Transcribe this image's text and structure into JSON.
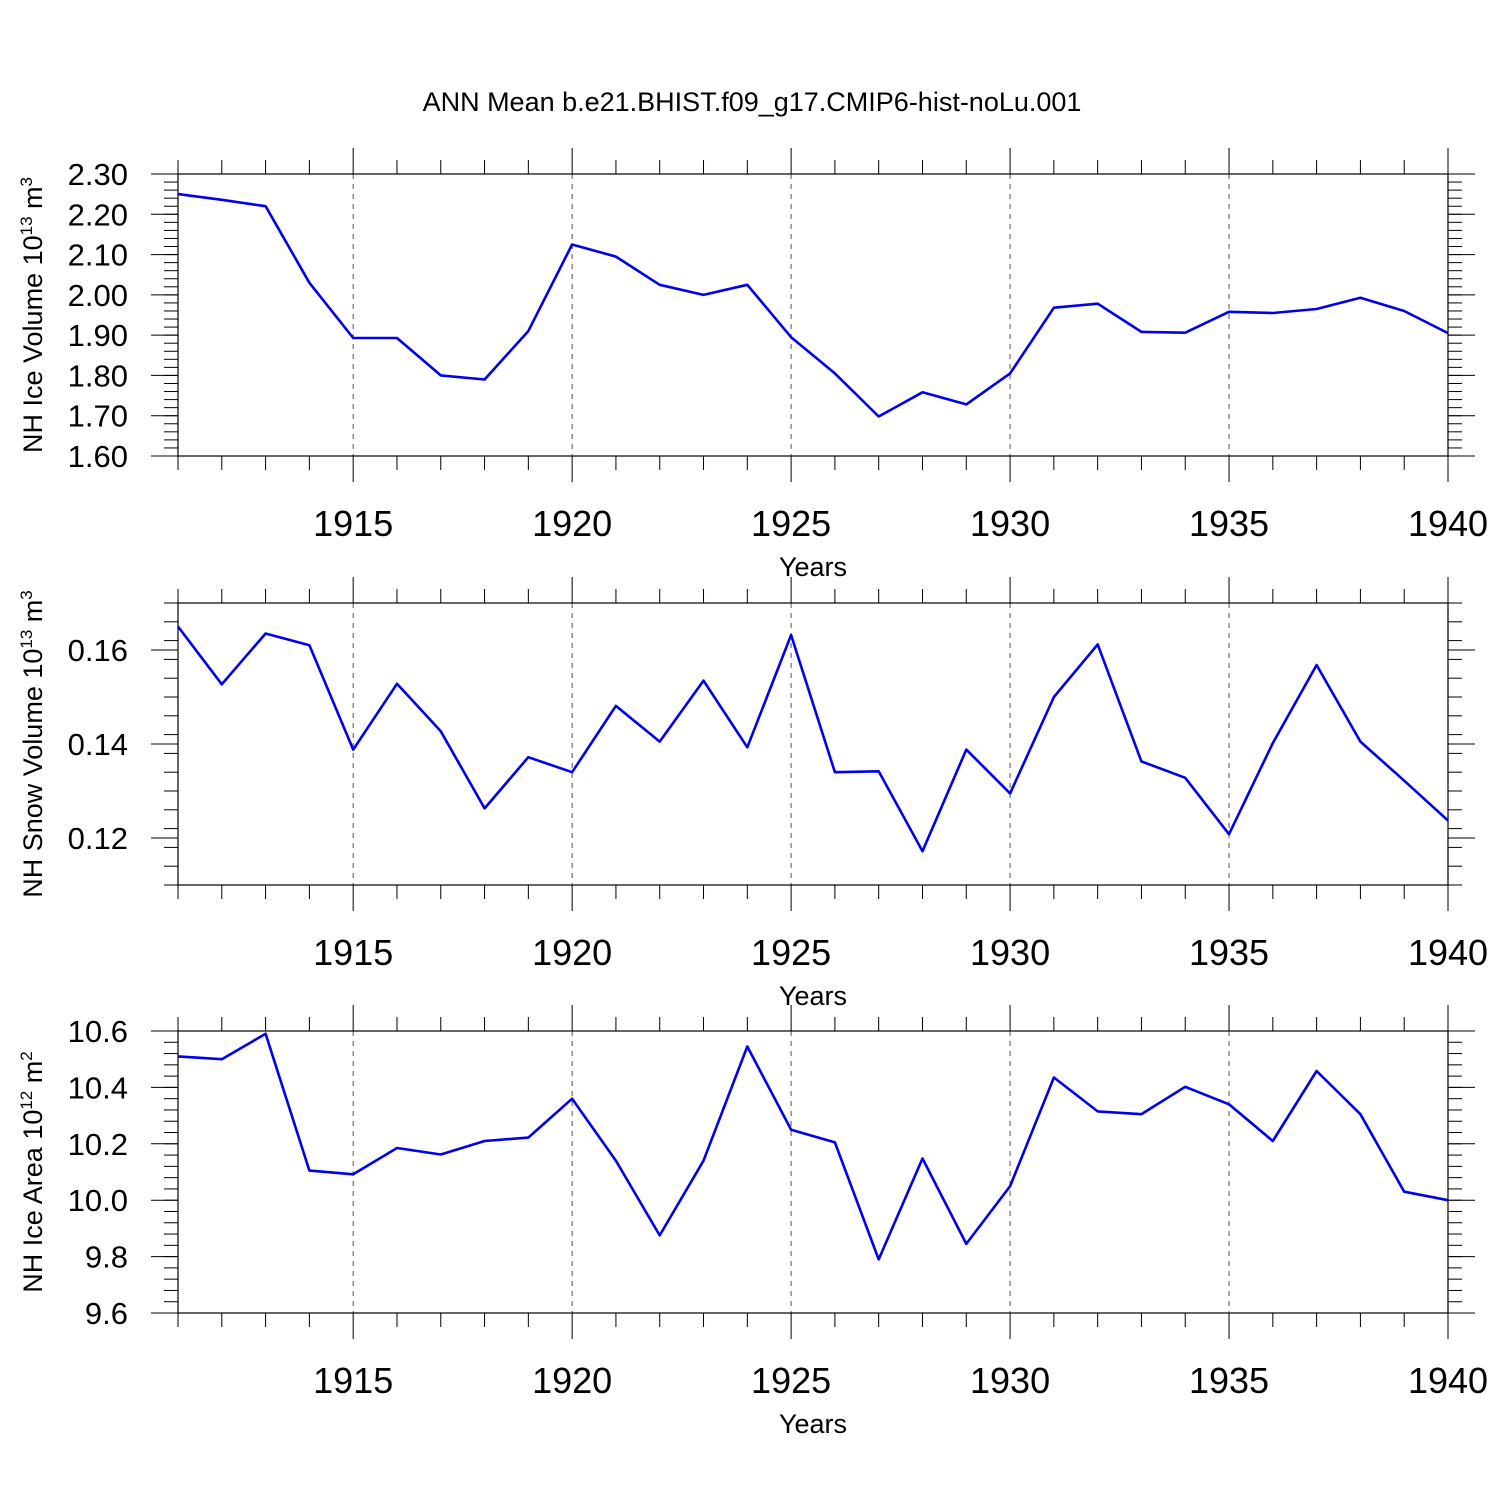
{
  "title": "ANN Mean b.e21.BHIST.f09_g17.CMIP6-hist-noLu.001",
  "colors": {
    "line": "#0000ee",
    "axis": "#000000",
    "grid": "#555555"
  },
  "chart_data": [
    {
      "type": "line",
      "xlabel": "Years",
      "ylabel": {
        "main": "NH Ice Volume 10",
        "exp": "13",
        "unit": " m",
        "unit_exp": "3"
      },
      "xlim": [
        1911,
        1940
      ],
      "ylim": [
        1.6,
        2.3
      ],
      "xticks": [
        1915,
        1920,
        1925,
        1930,
        1935,
        1940
      ],
      "yticks": [
        "1.60",
        "1.70",
        "1.80",
        "1.90",
        "2.00",
        "2.10",
        "2.20",
        "2.30"
      ],
      "grid": "vertical dashed at major x ticks",
      "x": [
        1911,
        1912,
        1913,
        1914,
        1915,
        1916,
        1917,
        1918,
        1919,
        1920,
        1921,
        1922,
        1923,
        1924,
        1925,
        1926,
        1927,
        1928,
        1929,
        1930,
        1931,
        1932,
        1933,
        1934,
        1935,
        1936,
        1937,
        1938,
        1939,
        1940
      ],
      "values": [
        2.25,
        2.236,
        2.22,
        2.03,
        1.893,
        1.893,
        1.8,
        1.79,
        1.91,
        2.125,
        2.095,
        2.025,
        2.0,
        2.025,
        1.895,
        1.805,
        1.698,
        1.758,
        1.728,
        1.805,
        1.968,
        1.978,
        1.908,
        1.906,
        1.958,
        1.955,
        1.965,
        1.993,
        1.96,
        1.905
      ]
    },
    {
      "type": "line",
      "xlabel": "Years",
      "ylabel": {
        "main": "NH Snow Volume 10",
        "exp": "13",
        "unit": " m",
        "unit_exp": "3"
      },
      "xlim": [
        1911,
        1940
      ],
      "ylim": [
        0.11,
        0.17
      ],
      "xticks": [
        1915,
        1920,
        1925,
        1930,
        1935,
        1940
      ],
      "yticks": [
        "0.12",
        "0.14",
        "0.16"
      ],
      "grid": "vertical dashed at major x ticks",
      "x": [
        1911,
        1912,
        1913,
        1914,
        1915,
        1916,
        1917,
        1918,
        1919,
        1920,
        1921,
        1922,
        1923,
        1924,
        1925,
        1926,
        1927,
        1928,
        1929,
        1930,
        1931,
        1932,
        1933,
        1934,
        1935,
        1936,
        1937,
        1938,
        1939,
        1940
      ],
      "values": [
        0.165,
        0.1527,
        0.1635,
        0.161,
        0.1388,
        0.1528,
        0.1427,
        0.1263,
        0.1372,
        0.134,
        0.1481,
        0.1405,
        0.1535,
        0.1393,
        0.1632,
        0.134,
        0.1342,
        0.1172,
        0.1388,
        0.1295,
        0.15,
        0.1612,
        0.1363,
        0.1328,
        0.1208,
        0.1402,
        0.1568,
        0.1405,
        0.1322,
        0.1237
      ]
    },
    {
      "type": "line",
      "xlabel": "Years",
      "ylabel": {
        "main": "NH Ice Area 10",
        "exp": "12",
        "unit": " m",
        "unit_exp": "2"
      },
      "xlim": [
        1911,
        1940
      ],
      "ylim": [
        9.6,
        10.6
      ],
      "xticks": [
        1915,
        1920,
        1925,
        1930,
        1935,
        1940
      ],
      "yticks": [
        "9.6",
        "9.8",
        "10.0",
        "10.2",
        "10.4",
        "10.6"
      ],
      "grid": "vertical dashed at major x ticks",
      "x": [
        1911,
        1912,
        1913,
        1914,
        1915,
        1916,
        1917,
        1918,
        1919,
        1920,
        1921,
        1922,
        1923,
        1924,
        1925,
        1926,
        1927,
        1928,
        1929,
        1930,
        1931,
        1932,
        1933,
        1934,
        1935,
        1936,
        1937,
        1938,
        1939,
        1940
      ],
      "values": [
        10.51,
        10.5,
        10.59,
        10.105,
        10.092,
        10.185,
        10.162,
        10.21,
        10.222,
        10.36,
        10.14,
        9.875,
        10.14,
        10.545,
        10.25,
        10.205,
        9.79,
        10.148,
        9.845,
        10.05,
        10.435,
        10.315,
        10.305,
        10.402,
        10.34,
        10.21,
        10.458,
        10.305,
        10.03,
        10.0
      ]
    }
  ]
}
